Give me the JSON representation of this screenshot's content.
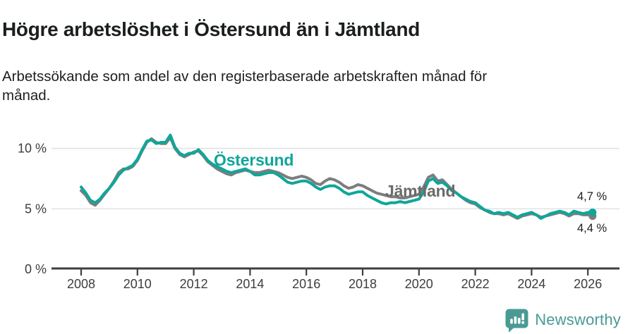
{
  "header": {
    "title": "Högre arbetslöshet i Östersund än i Jämtland",
    "subtitle_line1": "Arbetssökande som andel av den registerbaserade arbetskraften månad för",
    "subtitle_line2": "månad."
  },
  "footer": {
    "brand": "Newsworthy",
    "logo_icon": "bar-chart-speech-bubble-icon"
  },
  "colors": {
    "ostersund_line": "#0fa69a",
    "jamtland_line": "#7d7d7d",
    "jamtland_label": "#6b6b6b",
    "axis": "#3f3f3f",
    "gridline": "#e3e3e3",
    "tick_text": "#3d3d3d",
    "brand_teal": "#4a9a94"
  },
  "chart_data": {
    "type": "line",
    "title": "Högre arbetslöshet i Östersund än i Jämtland",
    "xlabel": "",
    "ylabel": "",
    "unit": "% av registerbaserad arbetskraft",
    "x_start": 2008.0,
    "x_step_years": 0.1667,
    "x_ticks": [
      2008,
      2010,
      2012,
      2014,
      2016,
      2018,
      2020,
      2022,
      2024,
      2026
    ],
    "y_ticks": [
      {
        "value": 0,
        "label": "0 %"
      },
      {
        "value": 5,
        "label": "5 %"
      },
      {
        "value": 10,
        "label": "10 %"
      }
    ],
    "ylim": [
      0,
      11.5
    ],
    "xlim": [
      2007.0,
      2027.0
    ],
    "grid": "horizontal",
    "legend_position": "inline-annotations",
    "series": [
      {
        "name": "Östersund",
        "color": "#0fa69a",
        "end_label": "4,7 %",
        "end_value": 4.7,
        "values": [
          6.8,
          6.3,
          5.7,
          5.5,
          5.8,
          6.3,
          6.7,
          7.2,
          7.8,
          8.2,
          8.4,
          8.6,
          9.1,
          9.9,
          10.6,
          10.7,
          10.4,
          10.5,
          10.5,
          11.1,
          10.1,
          9.6,
          9.4,
          9.6,
          9.6,
          9.9,
          9.5,
          9.0,
          8.7,
          8.5,
          8.3,
          8.1,
          8.0,
          8.1,
          8.2,
          8.3,
          8.1,
          7.8,
          7.8,
          7.9,
          8.0,
          8.0,
          7.8,
          7.5,
          7.2,
          7.1,
          7.2,
          7.3,
          7.3,
          7.1,
          6.8,
          6.6,
          6.8,
          6.9,
          6.9,
          6.7,
          6.4,
          6.2,
          6.3,
          6.4,
          6.4,
          6.1,
          5.9,
          5.7,
          5.5,
          5.4,
          5.5,
          5.5,
          5.6,
          5.5,
          5.6,
          5.7,
          5.8,
          6.4,
          7.3,
          7.5,
          7.1,
          7.2,
          6.9,
          6.5,
          6.3,
          6.0,
          5.8,
          5.6,
          5.5,
          5.2,
          4.9,
          4.8,
          4.6,
          4.7,
          4.6,
          4.7,
          4.5,
          4.3,
          4.5,
          4.6,
          4.7,
          4.5,
          4.2,
          4.4,
          4.6,
          4.7,
          4.8,
          4.7,
          4.5,
          4.8,
          4.7,
          4.6,
          4.7,
          4.7
        ]
      },
      {
        "name": "Jämtland",
        "color": "#7d7d7d",
        "end_label": "4,4 %",
        "end_value": 4.4,
        "values": [
          6.5,
          6.1,
          5.5,
          5.3,
          5.7,
          6.2,
          6.7,
          7.3,
          8.0,
          8.3,
          8.3,
          8.5,
          9.0,
          9.8,
          10.5,
          10.8,
          10.5,
          10.4,
          10.4,
          10.9,
          10.0,
          9.5,
          9.3,
          9.5,
          9.7,
          9.8,
          9.4,
          8.9,
          8.6,
          8.3,
          8.1,
          7.9,
          7.8,
          8.0,
          8.1,
          8.2,
          8.1,
          8.0,
          8.0,
          8.1,
          8.2,
          8.1,
          8.0,
          7.8,
          7.6,
          7.5,
          7.6,
          7.7,
          7.6,
          7.4,
          7.1,
          7.0,
          7.3,
          7.5,
          7.4,
          7.2,
          6.9,
          6.7,
          6.8,
          7.0,
          6.9,
          6.7,
          6.5,
          6.3,
          6.2,
          6.1,
          6.0,
          6.0,
          5.9,
          5.9,
          6.0,
          6.1,
          6.2,
          6.8,
          7.6,
          7.8,
          7.3,
          7.4,
          7.0,
          6.6,
          6.3,
          6.0,
          5.7,
          5.5,
          5.4,
          5.1,
          4.9,
          4.7,
          4.6,
          4.6,
          4.5,
          4.6,
          4.4,
          4.2,
          4.4,
          4.5,
          4.6,
          4.5,
          4.3,
          4.4,
          4.5,
          4.6,
          4.7,
          4.6,
          4.4,
          4.6,
          4.6,
          4.5,
          4.5,
          4.4
        ]
      }
    ]
  }
}
